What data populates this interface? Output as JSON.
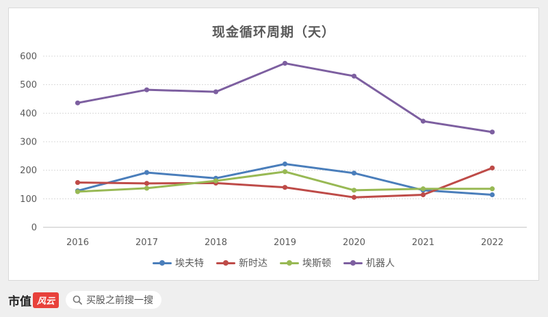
{
  "chart_data": {
    "type": "line",
    "title": "现金循环周期（天）",
    "categories": [
      "2016",
      "2017",
      "2018",
      "2019",
      "2020",
      "2021",
      "2022"
    ],
    "ylim": [
      0,
      600
    ],
    "yticks": [
      0,
      100,
      200,
      300,
      400,
      500,
      600
    ],
    "grid": "horizontal dotted",
    "legend_position": "bottom",
    "series": [
      {
        "name": "埃夫特",
        "color": "#4a7ebb",
        "values": [
          128,
          192,
          172,
          222,
          190,
          130,
          114
        ]
      },
      {
        "name": "新时达",
        "color": "#be4b48",
        "values": [
          157,
          154,
          155,
          140,
          105,
          114,
          208
        ]
      },
      {
        "name": "埃斯顿",
        "color": "#98b954",
        "values": [
          125,
          137,
          163,
          195,
          130,
          135,
          135
        ]
      },
      {
        "name": "机器人",
        "color": "#7d5fa0",
        "values": [
          436,
          482,
          475,
          575,
          530,
          372,
          334
        ]
      }
    ]
  },
  "footer": {
    "brand": "市值",
    "badge": "风云",
    "search_text": "买股之前搜一搜"
  }
}
